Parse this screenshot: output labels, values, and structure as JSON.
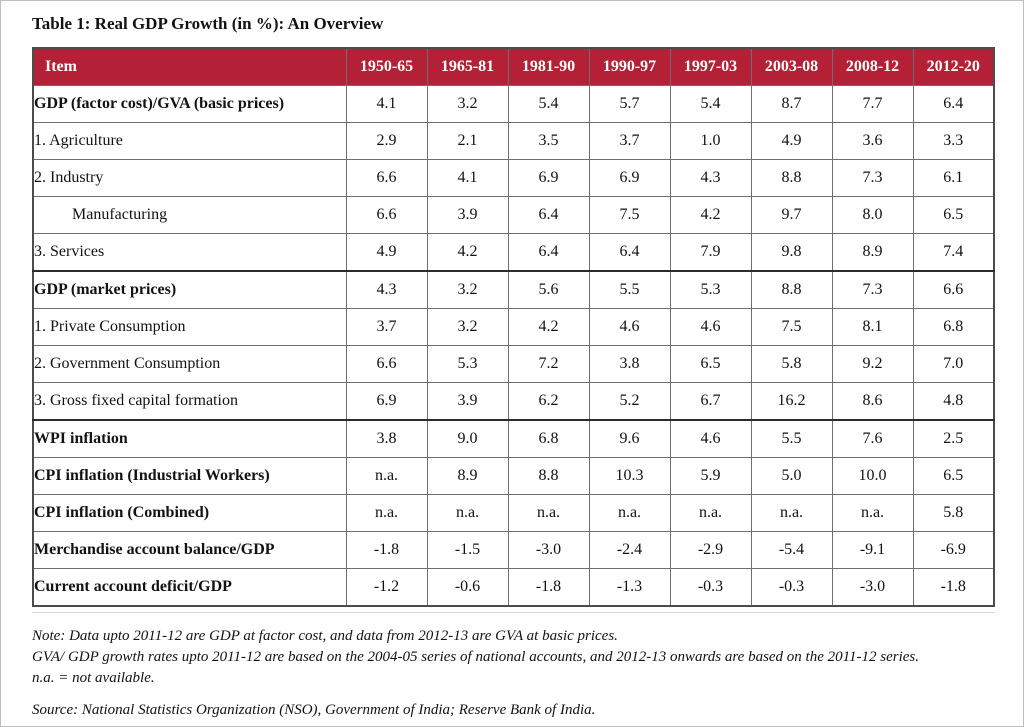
{
  "title": "Table 1: Real GDP Growth (in %): An Overview",
  "table": {
    "header": {
      "item_label": "Item",
      "periods": [
        "1950-65",
        "1965-81",
        "1981-90",
        "1990-97",
        "1997-03",
        "2003-08",
        "2008-12",
        "2012-20"
      ],
      "bg_color": "#b42036",
      "text_color": "#ffffff"
    },
    "rows": [
      {
        "label": "GDP (factor cost)/GVA (basic prices)",
        "bold": true,
        "indent": false,
        "thick_top": false,
        "values": [
          "4.1",
          "3.2",
          "5.4",
          "5.7",
          "5.4",
          "8.7",
          "7.7",
          "6.4"
        ]
      },
      {
        "label": "1. Agriculture",
        "bold": false,
        "indent": false,
        "thick_top": false,
        "values": [
          "2.9",
          "2.1",
          "3.5",
          "3.7",
          "1.0",
          "4.9",
          "3.6",
          "3.3"
        ]
      },
      {
        "label": "2. Industry",
        "bold": false,
        "indent": false,
        "thick_top": false,
        "values": [
          "6.6",
          "4.1",
          "6.9",
          "6.9",
          "4.3",
          "8.8",
          "7.3",
          "6.1"
        ]
      },
      {
        "label": "Manufacturing",
        "bold": false,
        "indent": true,
        "thick_top": false,
        "values": [
          "6.6",
          "3.9",
          "6.4",
          "7.5",
          "4.2",
          "9.7",
          "8.0",
          "6.5"
        ]
      },
      {
        "label": "3. Services",
        "bold": false,
        "indent": false,
        "thick_top": false,
        "values": [
          "4.9",
          "4.2",
          "6.4",
          "6.4",
          "7.9",
          "9.8",
          "8.9",
          "7.4"
        ]
      },
      {
        "label": "GDP (market prices)",
        "bold": true,
        "indent": false,
        "thick_top": true,
        "values": [
          "4.3",
          "3.2",
          "5.6",
          "5.5",
          "5.3",
          "8.8",
          "7.3",
          "6.6"
        ]
      },
      {
        "label": "1. Private Consumption",
        "bold": false,
        "indent": false,
        "thick_top": false,
        "values": [
          "3.7",
          "3.2",
          "4.2",
          "4.6",
          "4.6",
          "7.5",
          "8.1",
          "6.8"
        ]
      },
      {
        "label": "2. Government Consumption",
        "bold": false,
        "indent": false,
        "thick_top": false,
        "values": [
          "6.6",
          "5.3",
          "7.2",
          "3.8",
          "6.5",
          "5.8",
          "9.2",
          "7.0"
        ]
      },
      {
        "label": "3. Gross fixed capital formation",
        "bold": false,
        "indent": false,
        "thick_top": false,
        "values": [
          "6.9",
          "3.9",
          "6.2",
          "5.2",
          "6.7",
          "16.2",
          "8.6",
          "4.8"
        ]
      },
      {
        "label": "WPI inflation",
        "bold": true,
        "indent": false,
        "thick_top": true,
        "values": [
          "3.8",
          "9.0",
          "6.8",
          "9.6",
          "4.6",
          "5.5",
          "7.6",
          "2.5"
        ]
      },
      {
        "label": "CPI inflation (Industrial Workers)",
        "bold": true,
        "indent": false,
        "thick_top": false,
        "values": [
          "n.a.",
          "8.9",
          "8.8",
          "10.3",
          "5.9",
          "5.0",
          "10.0",
          "6.5"
        ]
      },
      {
        "label": "CPI inflation (Combined)",
        "bold": true,
        "indent": false,
        "thick_top": false,
        "values": [
          "n.a.",
          "n.a.",
          "n.a.",
          "n.a.",
          "n.a.",
          "n.a.",
          "n.a.",
          "5.8"
        ]
      },
      {
        "label": "Merchandise account balance/GDP",
        "bold": true,
        "indent": false,
        "thick_top": false,
        "values": [
          "-1.8",
          "-1.5",
          "-3.0",
          "-2.4",
          "-2.9",
          "-5.4",
          "-9.1",
          "-6.9"
        ]
      },
      {
        "label": "Current account deficit/GDP",
        "bold": true,
        "indent": false,
        "thick_top": false,
        "values": [
          "-1.2",
          "-0.6",
          "-1.8",
          "-1.3",
          "-0.3",
          "-0.3",
          "-3.0",
          "-1.8"
        ]
      }
    ]
  },
  "notes": {
    "note_lines": [
      "Note: Data upto 2011-12 are GDP at factor cost, and data from 2012-13 are GVA at basic prices.",
      "GVA/ GDP growth rates upto 2011-12 are based on the 2004-05 series of national accounts, and 2012-13 onwards are based on the 2011-12 series.",
      "n.a. = not available."
    ],
    "source_line": "Source: National Statistics Organization (NSO), Government of India; Reserve Bank of India."
  }
}
